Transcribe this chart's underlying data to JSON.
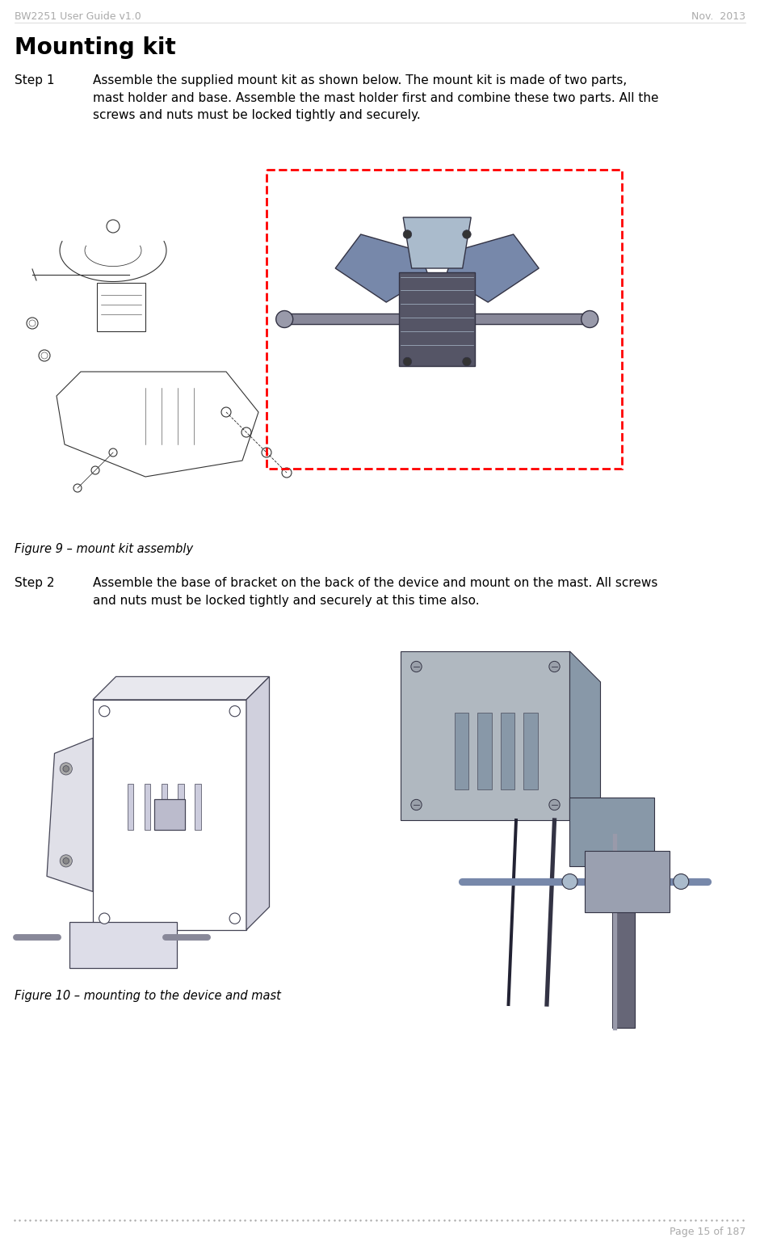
{
  "header_left": "BW2251 User Guide v1.0",
  "header_right": "Nov.  2013",
  "header_color": "#aaaaaa",
  "header_fontsize": 9,
  "title": "Mounting kit",
  "title_fontsize": 20,
  "step1_label": "Step 1",
  "step1_text": "Assemble the supplied mount kit as shown below. The mount kit is made of two parts,\nmast holder and base. Assemble the mast holder first and combine these two parts. All the\nscrews and nuts must be locked tightly and securely.",
  "step2_label": "Step 2",
  "step2_text": "Assemble the base of bracket on the back of the device and mount on the mast. All screws\nand nuts must be locked tightly and securely at this time also.",
  "fig9_caption": "Figure 9 – mount kit assembly",
  "fig10_caption": "Figure 10 – mounting to the device and mast",
  "footer_text": "Page 15 of 187",
  "footer_color": "#aaaaaa",
  "footer_fontsize": 9,
  "body_fontsize": 11,
  "label_fontsize": 11,
  "caption_fontsize": 10.5,
  "bg_color": "#ffffff",
  "text_color": "#000000"
}
